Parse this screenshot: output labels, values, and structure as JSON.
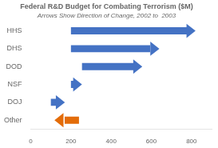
{
  "chart_data": {
    "type": "arrow",
    "title": "Federal R&D Budget for Combating Terrorism ($M)",
    "subtitle": "Arrows Show Direction of Change, 2002 to  2003",
    "categories": [
      "HHS",
      "DHS",
      "DOD",
      "NSF",
      "DOJ",
      "Other"
    ],
    "values": [
      [
        200,
        820
      ],
      [
        200,
        640
      ],
      [
        255,
        555
      ],
      [
        200,
        255
      ],
      [
        100,
        170
      ],
      [
        240,
        118
      ]
    ],
    "colors": [
      "#4472C4",
      "#4472C4",
      "#4472C4",
      "#4472C4",
      "#4472C4",
      "#E36C09"
    ],
    "orientation": "horizontal",
    "xlim": [
      0,
      900
    ],
    "xticks": [
      0,
      200,
      400,
      600,
      800
    ],
    "grid": false
  }
}
